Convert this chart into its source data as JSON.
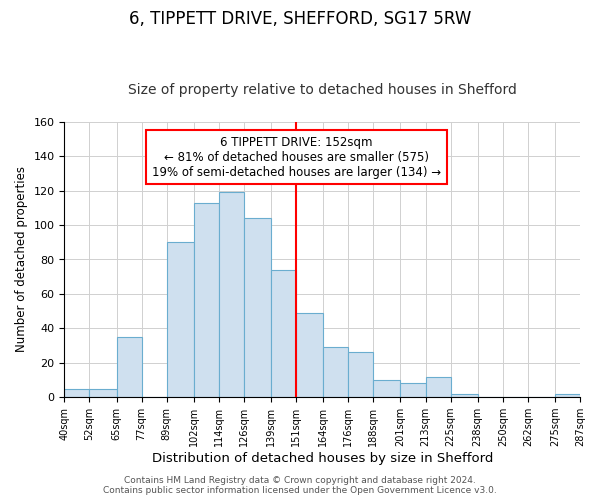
{
  "title": "6, TIPPETT DRIVE, SHEFFORD, SG17 5RW",
  "subtitle": "Size of property relative to detached houses in Shefford",
  "xlabel": "Distribution of detached houses by size in Shefford",
  "ylabel": "Number of detached properties",
  "bar_edges": [
    40,
    52,
    65,
    77,
    89,
    102,
    114,
    126,
    139,
    151,
    164,
    176,
    188,
    201,
    213,
    225,
    238,
    250,
    262,
    275,
    287
  ],
  "bar_heights": [
    5,
    5,
    35,
    0,
    90,
    113,
    119,
    104,
    74,
    49,
    29,
    26,
    10,
    8,
    12,
    2,
    0,
    0,
    0,
    2
  ],
  "bar_color": "#cfe0ef",
  "bar_edgecolor": "#6aadcf",
  "vline_x": 151,
  "vline_color": "red",
  "annotation_title": "6 TIPPETT DRIVE: 152sqm",
  "annotation_line1": "← 81% of detached houses are smaller (575)",
  "annotation_line2": "19% of semi-detached houses are larger (134) →",
  "annotation_box_color": "#ffffff",
  "annotation_box_edgecolor": "red",
  "ylim": [
    0,
    160
  ],
  "xlim": [
    40,
    287
  ],
  "tick_labels": [
    "40sqm",
    "52sqm",
    "65sqm",
    "77sqm",
    "89sqm",
    "102sqm",
    "114sqm",
    "126sqm",
    "139sqm",
    "151sqm",
    "164sqm",
    "176sqm",
    "188sqm",
    "201sqm",
    "213sqm",
    "225sqm",
    "238sqm",
    "250sqm",
    "262sqm",
    "275sqm",
    "287sqm"
  ],
  "tick_positions": [
    40,
    52,
    65,
    77,
    89,
    102,
    114,
    126,
    139,
    151,
    164,
    176,
    188,
    201,
    213,
    225,
    238,
    250,
    262,
    275,
    287
  ],
  "footer1": "Contains HM Land Registry data © Crown copyright and database right 2024.",
  "footer2": "Contains public sector information licensed under the Open Government Licence v3.0.",
  "title_fontsize": 12,
  "subtitle_fontsize": 10,
  "xlabel_fontsize": 9.5,
  "ylabel_fontsize": 8.5,
  "tick_fontsize": 7,
  "footer_fontsize": 6.5,
  "annotation_fontsize": 8.5,
  "ytick_fontsize": 8
}
